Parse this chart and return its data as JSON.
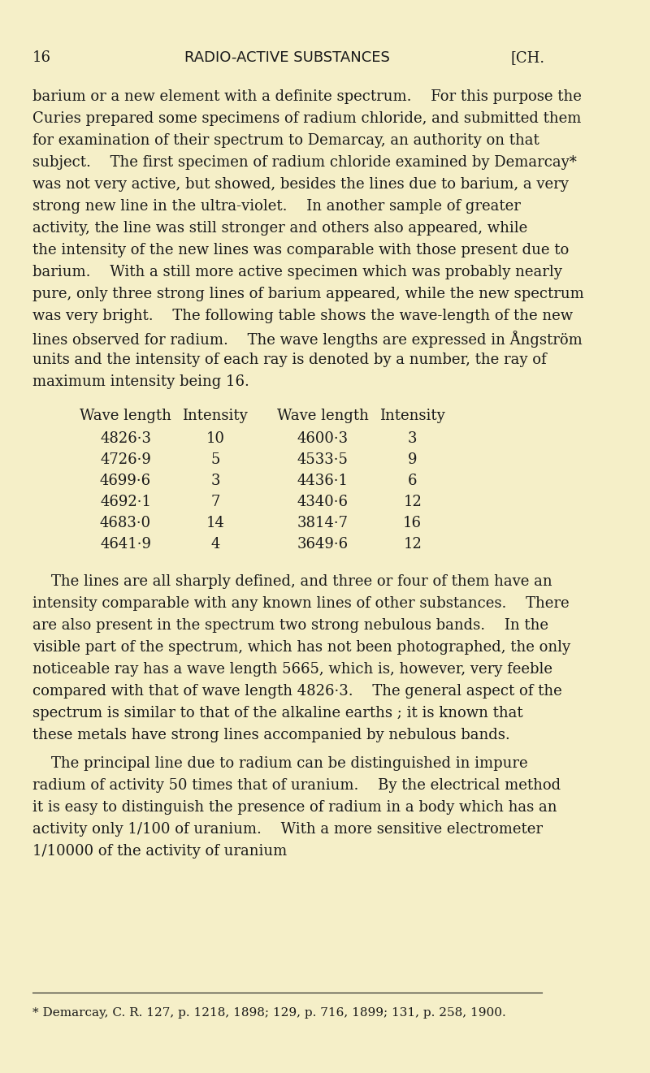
{
  "background_color": "#f5efc8",
  "text_color": "#1a1a1a",
  "page_number": "16",
  "header_center": "RADIO-ACTIVE SUBSTANCES",
  "header_right": "[CH.",
  "body_paragraphs": [
    "barium or a new element with a definite spectrum.  For this purpose the Curies prepared some specimens of radium chloride, and submitted them for examination of their spectrum to Demarcay, an authority on that subject.  The first specimen of radium chloride examined by Demarcay* was not very active, but showed, besides the lines due to barium, a very strong new line in the ultra-violet.  In another sample of greater activity, the line was still stronger and others also appeared, while the intensity of the new lines was comparable with those present due to barium.  With a still more active specimen which was probably nearly pure, only three strong lines of barium appeared, while the new spectrum was very bright.  The following table shows the wave-length of the new lines observed for radium.  The wave lengths are expressed in Ångström units and the intensity of each ray is denoted by a number, the ray of maximum intensity being 16."
  ],
  "table_headers": [
    "Wave length",
    "Intensity",
    "Wave length",
    "Intensity"
  ],
  "table_data": [
    [
      "4826·3",
      "10",
      "4600·3",
      "3"
    ],
    [
      "4726·9",
      "5",
      "4533·5",
      "9"
    ],
    [
      "4699·6",
      "3",
      "4436·1",
      "6"
    ],
    [
      "4692·1",
      "7",
      "4340·6",
      "12"
    ],
    [
      "4683·0",
      "14",
      "3814·7",
      "16"
    ],
    [
      "4641·9",
      "4",
      "3649·6",
      "12"
    ]
  ],
  "after_table_paragraphs": [
    " The lines are all sharply defined, and three or four of them have an intensity comparable with any known lines of other substances.  There are also present in the spectrum two strong nebulous bands.  In the visible part of the spectrum, which has not been photographed, the only noticeable ray has a wave length 5665, which is, however, very feeble compared with that of wave length 4826·3.  The general aspect of the spectrum is similar to that of the alkaline earths ; it is known that these metals have strong lines accompanied by nebulous bands.",
    " The principal line due to radium can be distinguished in impure radium of activity 50 times that of uranium.  By the electrical method it is easy to distinguish the presence of radium in a body which has an activity only 1/100 of uranium.  With a more sensitive electrometer 1/10000 of the activity of uranium"
  ],
  "footnote": "* Demarcay, C. R. 127, p. 1218, 1898; 129, p. 716, 1899; 131, p. 258, 1900."
}
